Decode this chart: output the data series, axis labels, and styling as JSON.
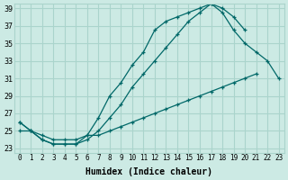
{
  "xlabel": "Humidex (Indice chaleur)",
  "background_color": "#cceae4",
  "grid_color": "#aad4cc",
  "line_color": "#006868",
  "xlim": [
    -0.5,
    23.5
  ],
  "ylim": [
    22.5,
    39.5
  ],
  "xticks": [
    0,
    1,
    2,
    3,
    4,
    5,
    6,
    7,
    8,
    9,
    10,
    11,
    12,
    13,
    14,
    15,
    16,
    17,
    18,
    19,
    20,
    21,
    22,
    23
  ],
  "yticks": [
    23,
    25,
    27,
    29,
    31,
    33,
    35,
    37,
    39
  ],
  "curve1_x": [
    0,
    1,
    2,
    3,
    4,
    5,
    6,
    7,
    8,
    9,
    10,
    11,
    12,
    13,
    14,
    15,
    16,
    17,
    18,
    19,
    20,
    21,
    22,
    23
  ],
  "curve1_y": [
    26.0,
    25.0,
    24.0,
    23.5,
    23.5,
    23.5,
    24.0,
    25.0,
    26.5,
    28.0,
    30.0,
    31.5,
    33.0,
    34.5,
    36.0,
    37.5,
    38.5,
    39.5,
    38.5,
    36.5,
    35.0,
    34.0,
    33.0,
    31.0
  ],
  "curve2_x": [
    0,
    1,
    2,
    3,
    4,
    5,
    6,
    7,
    8,
    9,
    10,
    11,
    12,
    13,
    14,
    15,
    16,
    17,
    18,
    19,
    20,
    21,
    22,
    23
  ],
  "curve2_y": [
    26.0,
    25.0,
    24.0,
    23.5,
    23.5,
    23.5,
    24.5,
    26.5,
    29.0,
    30.5,
    32.5,
    34.0,
    36.5,
    37.5,
    38.0,
    38.5,
    39.0,
    39.5,
    39.0,
    38.0,
    36.5,
    null,
    null,
    null
  ],
  "curve3_x": [
    0,
    1,
    2,
    3,
    4,
    5,
    6,
    7,
    8,
    9,
    10,
    11,
    12,
    13,
    14,
    15,
    16,
    17,
    18,
    19,
    20,
    21,
    22,
    23
  ],
  "curve3_y": [
    25.0,
    25.0,
    24.5,
    24.0,
    24.0,
    24.0,
    24.5,
    24.5,
    25.0,
    25.5,
    26.0,
    26.5,
    27.0,
    27.5,
    28.0,
    28.5,
    29.0,
    29.5,
    30.0,
    30.5,
    31.0,
    31.5,
    null,
    null
  ]
}
